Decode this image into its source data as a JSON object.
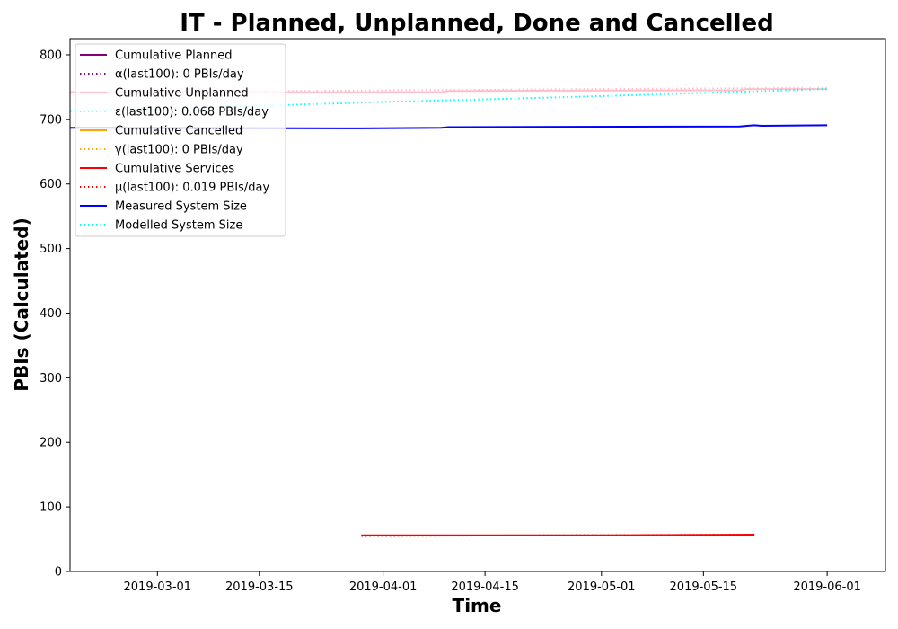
{
  "chart_data": {
    "type": "line",
    "title": "IT - Planned, Unplanned, Done  and Cancelled",
    "xlabel": "Time",
    "ylabel": "PBIs (Calculated)",
    "xlim": [
      "2019-02-17",
      "2019-06-09"
    ],
    "ylim": [
      0,
      825
    ],
    "grid": false,
    "legend_position": "top-left",
    "x_ticks": [
      "2019-03-01",
      "2019-03-15",
      "2019-04-01",
      "2019-04-15",
      "2019-05-01",
      "2019-05-15",
      "2019-06-01"
    ],
    "y_ticks": [
      0,
      100,
      200,
      300,
      400,
      500,
      600,
      700,
      800
    ],
    "series": [
      {
        "name": "Cumulative Planned",
        "color": "#800080",
        "dash": "solid",
        "points": []
      },
      {
        "name": "α(last100): 0 PBIs/day",
        "color": "#800080",
        "dash": "dotted",
        "points": []
      },
      {
        "name": "Cumulative Unplanned",
        "color": "#ffc0cb",
        "dash": "solid",
        "points": [
          [
            "2019-02-17",
            742
          ],
          [
            "2019-04-09",
            742
          ],
          [
            "2019-04-10",
            744
          ],
          [
            "2019-05-20",
            745
          ],
          [
            "2019-05-21",
            747
          ],
          [
            "2019-06-01",
            747
          ]
        ]
      },
      {
        "name": "ε(last100): 0.068 PBIs/day",
        "color": "#ffc0cb",
        "dash": "dotted",
        "points": [
          [
            "2019-02-17",
            742
          ],
          [
            "2019-06-01",
            749
          ]
        ]
      },
      {
        "name": "Cumulative Cancelled",
        "color": "#ffa500",
        "dash": "solid",
        "points": []
      },
      {
        "name": "γ(last100): 0 PBIs/day",
        "color": "#ffa500",
        "dash": "dotted",
        "points": []
      },
      {
        "name": "Cumulative Services",
        "color": "#ff0000",
        "dash": "solid",
        "points": [
          [
            "2019-03-29",
            56
          ],
          [
            "2019-05-01",
            56
          ],
          [
            "2019-05-22",
            57
          ]
        ]
      },
      {
        "name": "μ(last100): 0.019 PBIs/day",
        "color": "#ff0000",
        "dash": "dotted",
        "points": [
          [
            "2019-03-29",
            55
          ],
          [
            "2019-05-22",
            57
          ]
        ]
      },
      {
        "name": "Measured System Size",
        "color": "#0000ff",
        "dash": "solid",
        "points": [
          [
            "2019-02-17",
            687
          ],
          [
            "2019-03-29",
            686
          ],
          [
            "2019-04-09",
            687
          ],
          [
            "2019-04-10",
            688
          ],
          [
            "2019-05-20",
            689
          ],
          [
            "2019-05-21",
            690
          ],
          [
            "2019-05-22",
            691
          ],
          [
            "2019-05-23",
            690
          ],
          [
            "2019-06-01",
            691
          ]
        ]
      },
      {
        "name": "Modelled System Size",
        "color": "#00ffff",
        "dash": "dotted",
        "points": [
          [
            "2019-02-17",
            713
          ],
          [
            "2019-03-01",
            716
          ],
          [
            "2019-03-15",
            721
          ],
          [
            "2019-04-01",
            727
          ],
          [
            "2019-04-15",
            731
          ],
          [
            "2019-05-01",
            736
          ],
          [
            "2019-05-15",
            741
          ],
          [
            "2019-06-01",
            747
          ]
        ]
      }
    ]
  }
}
